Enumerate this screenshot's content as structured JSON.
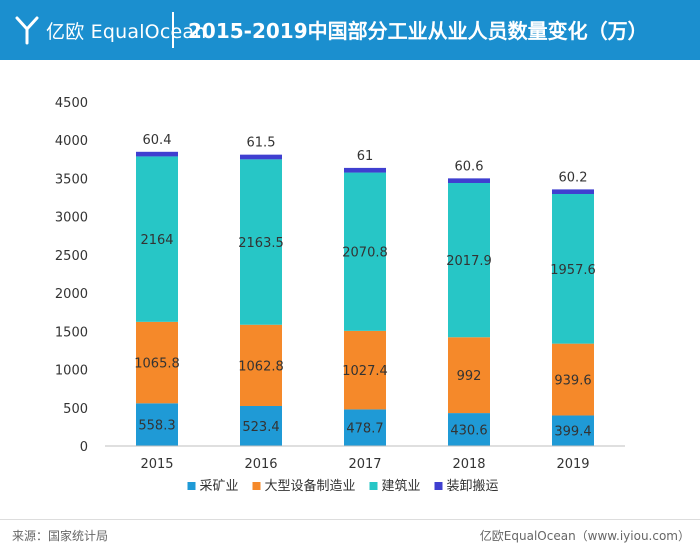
{
  "header": {
    "logo_text": "亿欧 EqualOcean",
    "title": "2015-2019中国部分工业从业人员数量变化（万）"
  },
  "footer": {
    "source": "来源：国家统计局",
    "credit": "亿欧EqualOcean（www.iyiou.com）"
  },
  "colors": {
    "header_bg": "#1b8fcf",
    "mining": "#1f9ad6",
    "manufacturing": "#f5892a",
    "construction": "#27c6c6",
    "handling": "#3f3fd0"
  },
  "chart_data": {
    "type": "bar",
    "stacked": true,
    "title": "2015-2019中国部分工业从业人员数量变化（万）",
    "xlabel": "",
    "ylabel": "",
    "ylim": [
      0,
      4500
    ],
    "yticks": [
      0,
      500,
      1000,
      1500,
      2000,
      2500,
      3000,
      3500,
      4000,
      4500
    ],
    "categories": [
      "2015",
      "2016",
      "2017",
      "2018",
      "2019"
    ],
    "series": [
      {
        "name": "采矿业",
        "color": "#1f9ad6",
        "values": [
          558.3,
          523.4,
          478.7,
          430.6,
          399.4
        ],
        "labels": [
          "558.3",
          "523.4",
          "478.7",
          "430.6",
          "399.4"
        ]
      },
      {
        "name": "大型设备制造业",
        "color": "#f5892a",
        "values": [
          1065.8,
          1062.8,
          1027.4,
          992,
          939.6
        ],
        "labels": [
          "1065.8",
          "1062.8",
          "1027.4",
          "992",
          "939.6"
        ]
      },
      {
        "name": "建筑业",
        "color": "#27c6c6",
        "values": [
          2164,
          2163.5,
          2070.8,
          2017.9,
          1957.6
        ],
        "labels": [
          "2164",
          "2163.5",
          "2070.8",
          "2017.9",
          "1957.6"
        ]
      },
      {
        "name": "装卸搬运",
        "color": "#3f3fd0",
        "values": [
          60.4,
          61.5,
          61,
          60.6,
          60.2
        ],
        "labels": [
          "60.4",
          "61.5",
          "61",
          "60.6",
          "60.2"
        ]
      }
    ],
    "legend_position": "bottom",
    "grid": false
  }
}
